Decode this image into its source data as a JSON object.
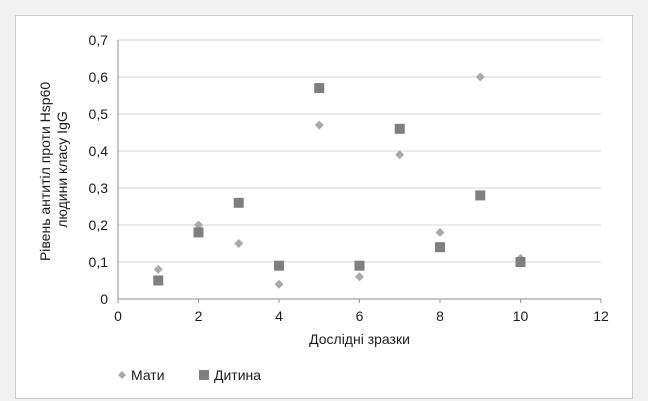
{
  "chart_data": {
    "type": "scatter",
    "title": "",
    "xlabel": "Дослідні зразки",
    "ylabel_lines": [
      "Рівень антитіл проти Hsp60",
      "людини класу IgG"
    ],
    "xlim": [
      0,
      12
    ],
    "ylim": [
      0,
      0.7
    ],
    "xticks": [
      "0",
      "2",
      "4",
      "6",
      "8",
      "10",
      "12"
    ],
    "yticks": [
      "0",
      "0,1",
      "0,2",
      "0,3",
      "0,4",
      "0,5",
      "0,6",
      "0,7"
    ],
    "grid": "horizontal",
    "legend_position": "bottom-left",
    "series": [
      {
        "name": "Мати",
        "marker": "diamond",
        "color": "#a9a9a9",
        "points": [
          {
            "x": 1,
            "y": 0.08
          },
          {
            "x": 2,
            "y": 0.2
          },
          {
            "x": 3,
            "y": 0.15
          },
          {
            "x": 4,
            "y": 0.04
          },
          {
            "x": 5,
            "y": 0.47
          },
          {
            "x": 6,
            "y": 0.06
          },
          {
            "x": 7,
            "y": 0.39
          },
          {
            "x": 8,
            "y": 0.18
          },
          {
            "x": 9,
            "y": 0.6
          },
          {
            "x": 10,
            "y": 0.11
          }
        ]
      },
      {
        "name": "Дитина",
        "marker": "square",
        "color": "#7f7f7f",
        "points": [
          {
            "x": 1,
            "y": 0.05
          },
          {
            "x": 2,
            "y": 0.18
          },
          {
            "x": 3,
            "y": 0.26
          },
          {
            "x": 4,
            "y": 0.09
          },
          {
            "x": 5,
            "y": 0.57
          },
          {
            "x": 6,
            "y": 0.09
          },
          {
            "x": 7,
            "y": 0.46
          },
          {
            "x": 8,
            "y": 0.14
          },
          {
            "x": 9,
            "y": 0.28
          },
          {
            "x": 10,
            "y": 0.1
          }
        ]
      }
    ]
  }
}
